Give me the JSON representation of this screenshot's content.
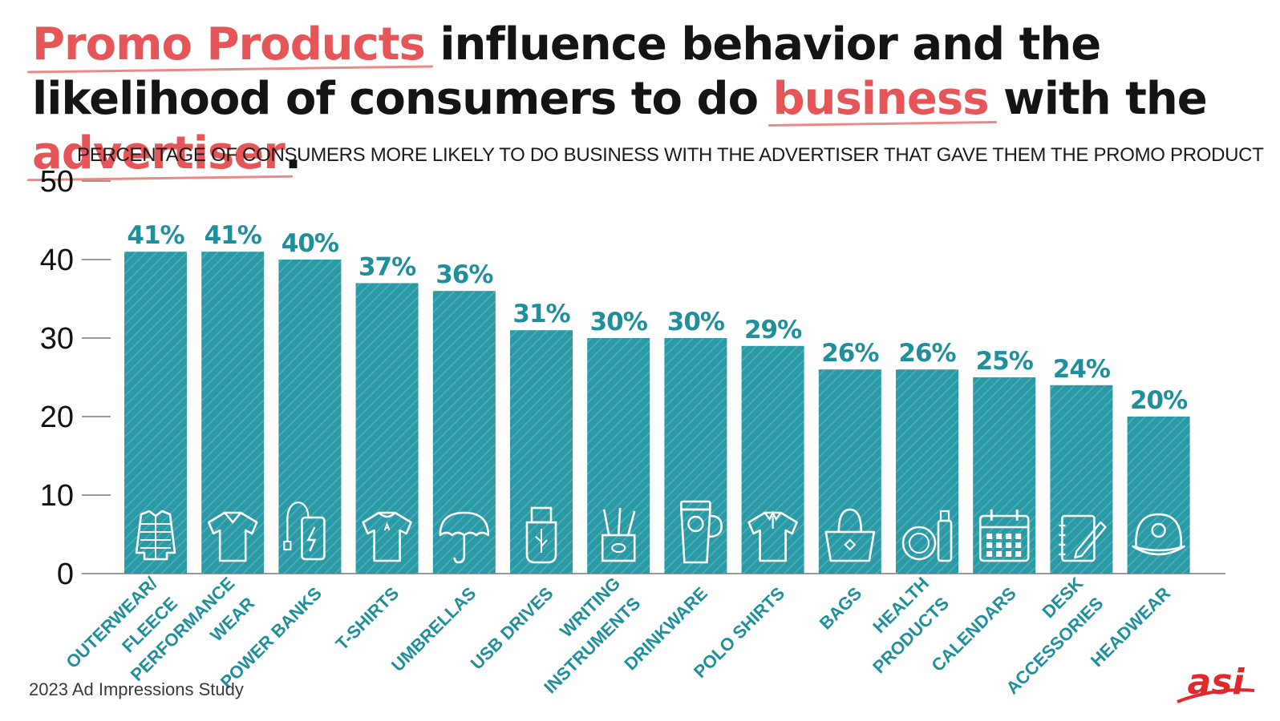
{
  "headline": {
    "part1_highlight": "Promo Products",
    "part2": " influence behavior and the likelihood of consumers to do ",
    "part3_highlight": "business",
    "part4": " with the ",
    "part5_highlight": "advertiser",
    "part6": "."
  },
  "source": "2023 Ad Impressions Study",
  "logo_text": "asi",
  "colors": {
    "bar": "#2a9ba6",
    "label": "#1f8f9c",
    "accent": "#e65557",
    "axis": "#999999"
  },
  "chart_data": {
    "type": "bar",
    "title": "PERCENTAGE OF CONSUMERS MORE LIKELY TO DO BUSINESS WITH THE ADVERTISER THAT GAVE THEM THE PROMO PRODUCT",
    "categories": [
      [
        "OUTERWEAR/",
        "FLEECE"
      ],
      [
        "PERFORMANCE",
        "WEAR"
      ],
      [
        "POWER BANKS"
      ],
      [
        "T-SHIRTS"
      ],
      [
        "UMBRELLAS"
      ],
      [
        "USB DRIVES"
      ],
      [
        "WRITING",
        "INSTRUMENTS"
      ],
      [
        "DRINKWARE"
      ],
      [
        "POLO SHIRTS"
      ],
      [
        "BAGS"
      ],
      [
        "HEALTH",
        "PRODUCTS"
      ],
      [
        "CALENDARS"
      ],
      [
        "DESK",
        "ACCESSORIES"
      ],
      [
        "HEADWEAR"
      ]
    ],
    "values": [
      41,
      41,
      40,
      37,
      36,
      31,
      30,
      30,
      29,
      26,
      26,
      25,
      24,
      20
    ],
    "data_labels": [
      "41%",
      "41%",
      "40%",
      "37%",
      "36%",
      "31%",
      "30%",
      "30%",
      "29%",
      "26%",
      "26%",
      "25%",
      "24%",
      "20%"
    ],
    "icons": [
      "jacket-icon",
      "performance-shirt-icon",
      "power-bank-icon",
      "t-shirt-icon",
      "umbrella-icon",
      "usb-drive-icon",
      "pen-cup-icon",
      "travel-mug-icon",
      "polo-shirt-icon",
      "tote-bag-icon",
      "lip-balm-sanitizer-icon",
      "calendar-icon",
      "notepad-pen-icon",
      "cap-icon"
    ],
    "ylim": [
      0,
      50
    ],
    "yticks": [
      0,
      10,
      20,
      30,
      40,
      50
    ],
    "grid": false,
    "legend": "none"
  }
}
